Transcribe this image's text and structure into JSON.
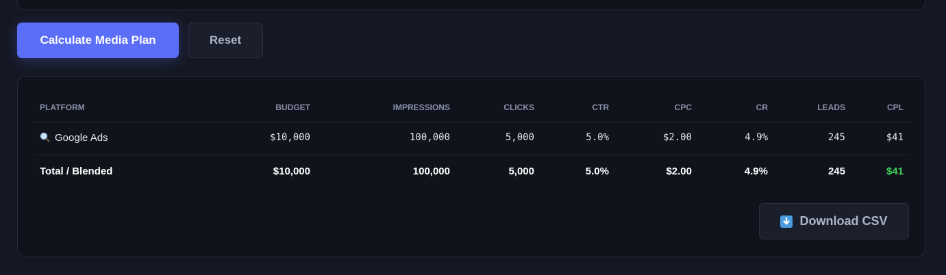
{
  "actions": {
    "calculate": "Calculate Media Plan",
    "reset": "Reset"
  },
  "table": {
    "headers": [
      "PLATFORM",
      "BUDGET",
      "IMPRESSIONS",
      "CLICKS",
      "CTR",
      "CPC",
      "CR",
      "LEADS",
      "CPL"
    ],
    "rows": [
      [
        "Google Ads",
        "$10,000",
        "100,000",
        "5,000",
        "5.0%",
        "$2.00",
        "4.9%",
        "245",
        "$41"
      ]
    ],
    "total": [
      "Total / Blended",
      "$10,000",
      "100,000",
      "5,000",
      "5.0%",
      "$2.00",
      "4.9%",
      "245",
      "$41"
    ]
  },
  "download": "Download CSV"
}
